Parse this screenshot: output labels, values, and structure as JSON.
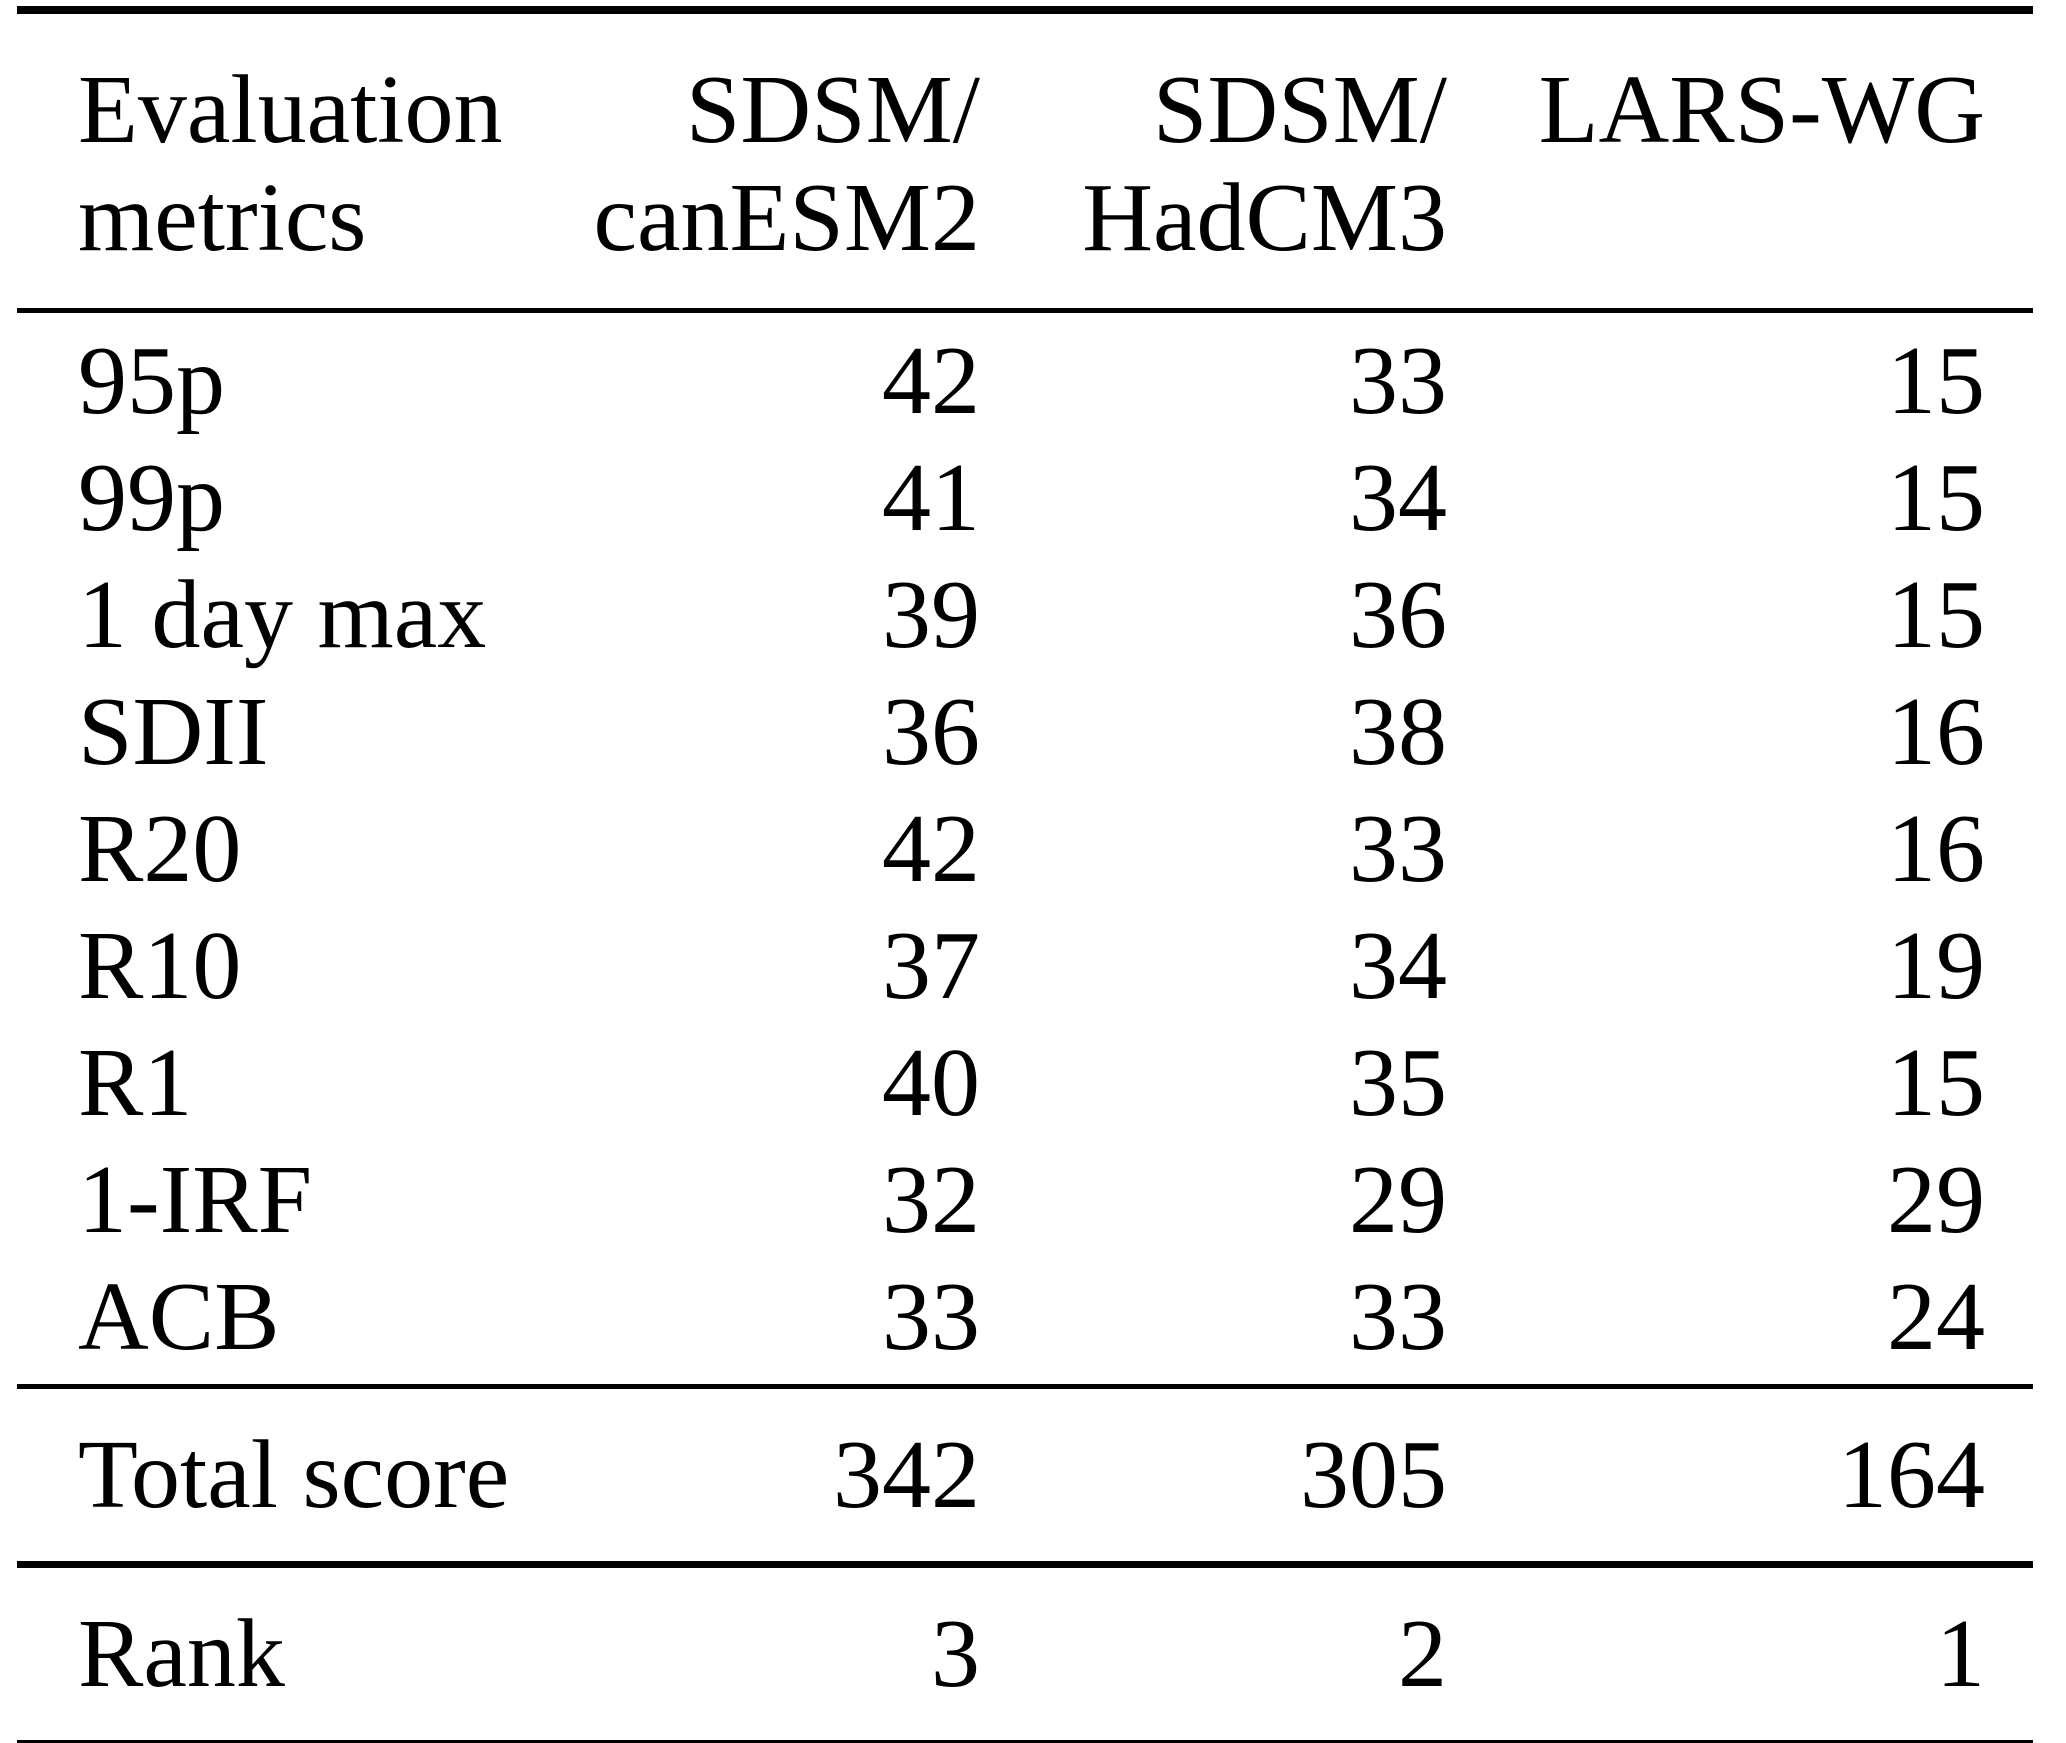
{
  "colors": {
    "background": "#ffffff",
    "text": "#000000",
    "rule": "#000000"
  },
  "table": {
    "header": {
      "cols": [
        {
          "line1": "Evaluation",
          "line2": "metrics"
        },
        {
          "line1": "SDSM/",
          "line2": "canESM2"
        },
        {
          "line1": "SDSM/",
          "line2": "HadCM3"
        },
        {
          "line1": "LARS-WG",
          "line2": ""
        }
      ]
    },
    "rows": [
      {
        "metric": "95p",
        "values": [
          "42",
          "33",
          "15"
        ]
      },
      {
        "metric": "99p",
        "values": [
          "41",
          "34",
          "15"
        ]
      },
      {
        "metric": "1 day max",
        "values": [
          "39",
          "36",
          "15"
        ]
      },
      {
        "metric": "SDII",
        "values": [
          "36",
          "38",
          "16"
        ]
      },
      {
        "metric": "R20",
        "values": [
          "42",
          "33",
          "16"
        ]
      },
      {
        "metric": "R10",
        "values": [
          "37",
          "34",
          "19"
        ]
      },
      {
        "metric": "R1",
        "values": [
          "40",
          "35",
          "15"
        ]
      },
      {
        "metric": "1-IRF",
        "values": [
          "32",
          "29",
          "29"
        ]
      },
      {
        "metric": "ACB",
        "values": [
          "33",
          "33",
          "24"
        ]
      }
    ],
    "total": {
      "label": "Total score",
      "values": [
        "342",
        "305",
        "164"
      ]
    },
    "rank": {
      "label": "Rank",
      "values": [
        "3",
        "2",
        "1"
      ]
    }
  }
}
